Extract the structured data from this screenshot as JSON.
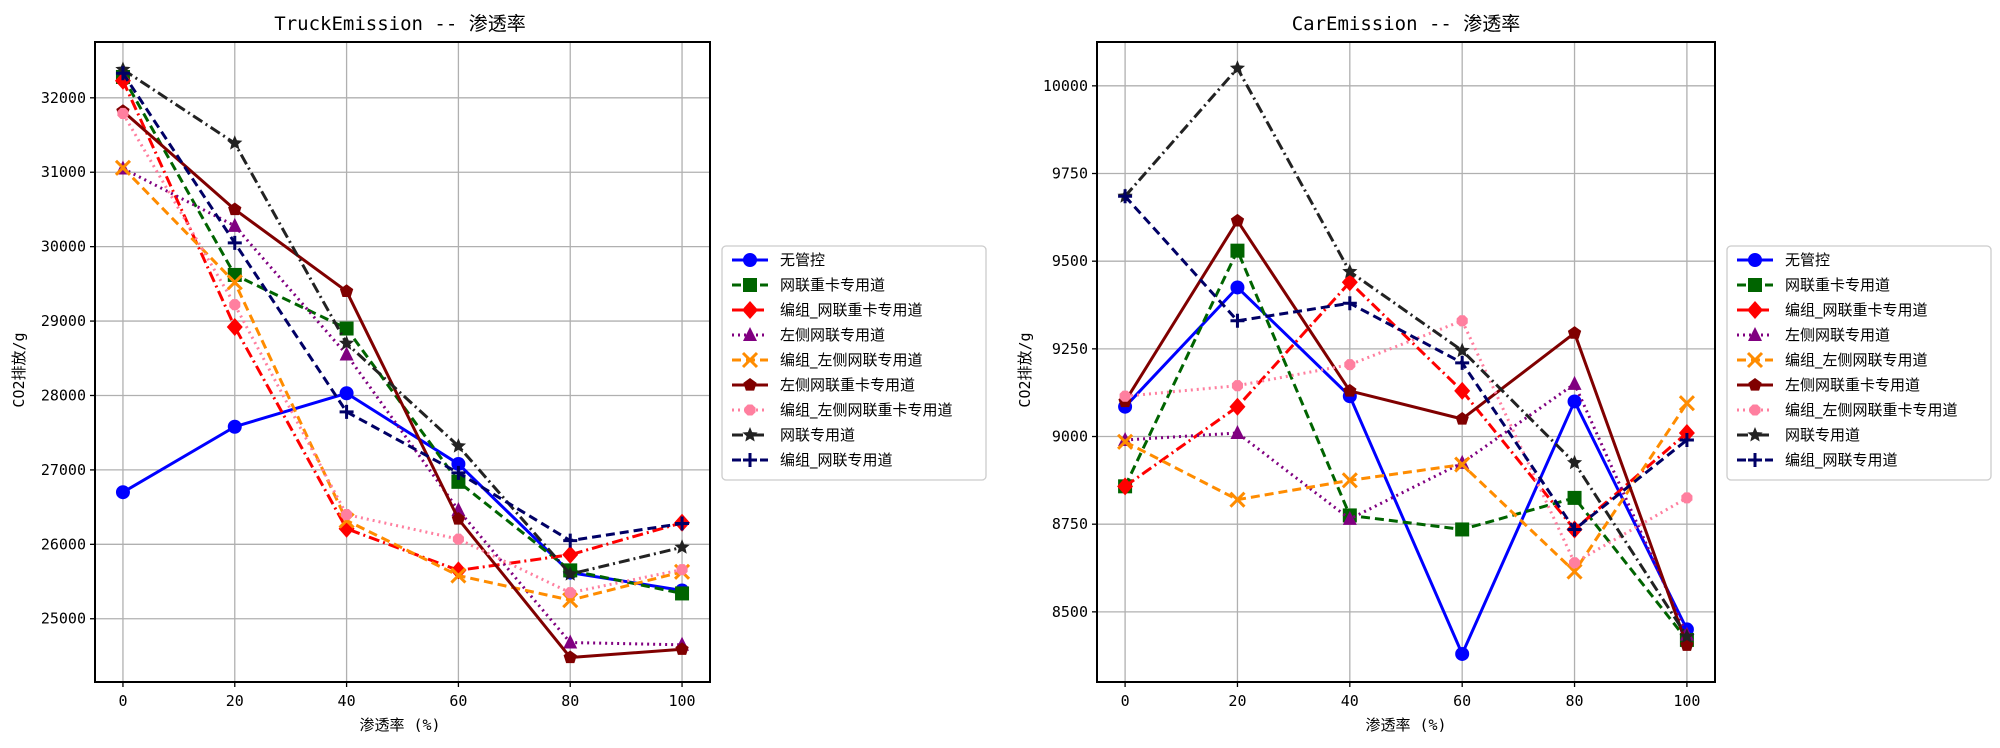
{
  "chart_data": [
    {
      "type": "line",
      "title": "TruckEmission -- 渗透率",
      "xlabel": "渗透率 (%)",
      "ylabel": "CO2排放/g",
      "x": [
        0,
        20,
        40,
        60,
        80,
        100
      ],
      "xticks": [
        "0",
        "20",
        "40",
        "60",
        "80",
        "100"
      ],
      "xlim": [
        -5,
        105
      ],
      "ylim": [
        24150,
        32750
      ],
      "yticks": [
        "25000",
        "26000",
        "27000",
        "28000",
        "29000",
        "30000",
        "31000",
        "32000"
      ],
      "ytick_values": [
        25000,
        26000,
        27000,
        28000,
        29000,
        30000,
        31000,
        32000
      ],
      "grid": true,
      "legend_position": "outside-right",
      "series": [
        {
          "name": "无管控",
          "color": "#0000ff",
          "linestyle": "solid",
          "marker": "circle",
          "values": [
            26700,
            27580,
            28030,
            27080,
            25620,
            25380
          ]
        },
        {
          "name": "网联重卡专用道",
          "color": "#006400",
          "linestyle": "dashed",
          "marker": "square",
          "values": [
            32280,
            29620,
            28900,
            26840,
            25650,
            25340
          ]
        },
        {
          "name": "编组_网联重卡专用道",
          "color": "#ff0000",
          "linestyle": "dashdot",
          "marker": "diamond",
          "values": [
            32230,
            28920,
            26210,
            25650,
            25860,
            26290
          ]
        },
        {
          "name": "左侧网联专用道",
          "color": "#800080",
          "linestyle": "dotted",
          "marker": "triangle",
          "values": [
            31050,
            30280,
            28550,
            26460,
            24680,
            24650
          ]
        },
        {
          "name": "编组_左侧网联专用道",
          "color": "#ff8c00",
          "linestyle": "dashed",
          "marker": "x",
          "values": [
            31060,
            29520,
            26320,
            25580,
            25250,
            25630
          ]
        },
        {
          "name": "左侧网联重卡专用道",
          "color": "#800000",
          "linestyle": "solid",
          "marker": "pentagon",
          "values": [
            31820,
            30500,
            29400,
            26340,
            24480,
            24590
          ]
        },
        {
          "name": "编组_左侧网联重卡专用道",
          "color": "#ff7f9f",
          "linestyle": "dotted",
          "marker": "octagon",
          "values": [
            31790,
            29220,
            26400,
            26070,
            25350,
            25660
          ]
        },
        {
          "name": "网联专用道",
          "color": "#222222",
          "linestyle": "dashdot",
          "marker": "star",
          "values": [
            32380,
            31390,
            28700,
            27320,
            25600,
            25960
          ]
        },
        {
          "name": "编组_网联专用道",
          "color": "#000066",
          "linestyle": "dashed",
          "marker": "plus",
          "values": [
            32330,
            30050,
            27780,
            26960,
            26050,
            26280
          ]
        }
      ]
    },
    {
      "type": "line",
      "title": "CarEmission -- 渗透率",
      "xlabel": "渗透率 (%)",
      "ylabel": "CO2排放/g",
      "x": [
        0,
        20,
        40,
        60,
        80,
        100
      ],
      "xticks": [
        "0",
        "20",
        "40",
        "60",
        "80",
        "100"
      ],
      "xlim": [
        -5,
        105
      ],
      "ylim": [
        8300,
        10125
      ],
      "yticks": [
        "8500",
        "8750",
        "9000",
        "9250",
        "9500",
        "9750",
        "10000"
      ],
      "ytick_values": [
        8500,
        8750,
        9000,
        9250,
        9500,
        9750,
        10000
      ],
      "grid": true,
      "legend_position": "outside-right",
      "series": [
        {
          "name": "无管控",
          "color": "#0000ff",
          "linestyle": "solid",
          "marker": "circle",
          "values": [
            9085,
            9425,
            9115,
            8380,
            9100,
            8450
          ]
        },
        {
          "name": "网联重卡专用道",
          "color": "#006400",
          "linestyle": "dashed",
          "marker": "square",
          "values": [
            8858,
            9530,
            8775,
            8735,
            8825,
            8420
          ]
        },
        {
          "name": "编组_网联重卡专用道",
          "color": "#ff0000",
          "linestyle": "dashdot",
          "marker": "diamond",
          "values": [
            8858,
            9085,
            9440,
            9130,
            8735,
            9010
          ]
        },
        {
          "name": "左侧网联专用道",
          "color": "#800080",
          "linestyle": "dotted",
          "marker": "triangle",
          "values": [
            8990,
            9010,
            8765,
            8925,
            9150,
            8435
          ]
        },
        {
          "name": "编组_左侧网联专用道",
          "color": "#ff8c00",
          "linestyle": "dashed",
          "marker": "x",
          "values": [
            8985,
            8820,
            8875,
            8920,
            8615,
            9095
          ]
        },
        {
          "name": "左侧网联重卡专用道",
          "color": "#800000",
          "linestyle": "solid",
          "marker": "pentagon",
          "values": [
            9100,
            9615,
            9130,
            9050,
            9295,
            8405
          ]
        },
        {
          "name": "编组_左侧网联重卡专用道",
          "color": "#ff7f9f",
          "linestyle": "dotted",
          "marker": "octagon",
          "values": [
            9115,
            9145,
            9205,
            9330,
            8640,
            8825
          ]
        },
        {
          "name": "网联专用道",
          "color": "#222222",
          "linestyle": "dashdot",
          "marker": "star",
          "values": [
            9685,
            10050,
            9470,
            9245,
            8925,
            8430
          ]
        },
        {
          "name": "编组_网联专用道",
          "color": "#000066",
          "linestyle": "dashed",
          "marker": "plus",
          "values": [
            9685,
            9330,
            9380,
            9210,
            8735,
            8990
          ]
        }
      ]
    }
  ]
}
